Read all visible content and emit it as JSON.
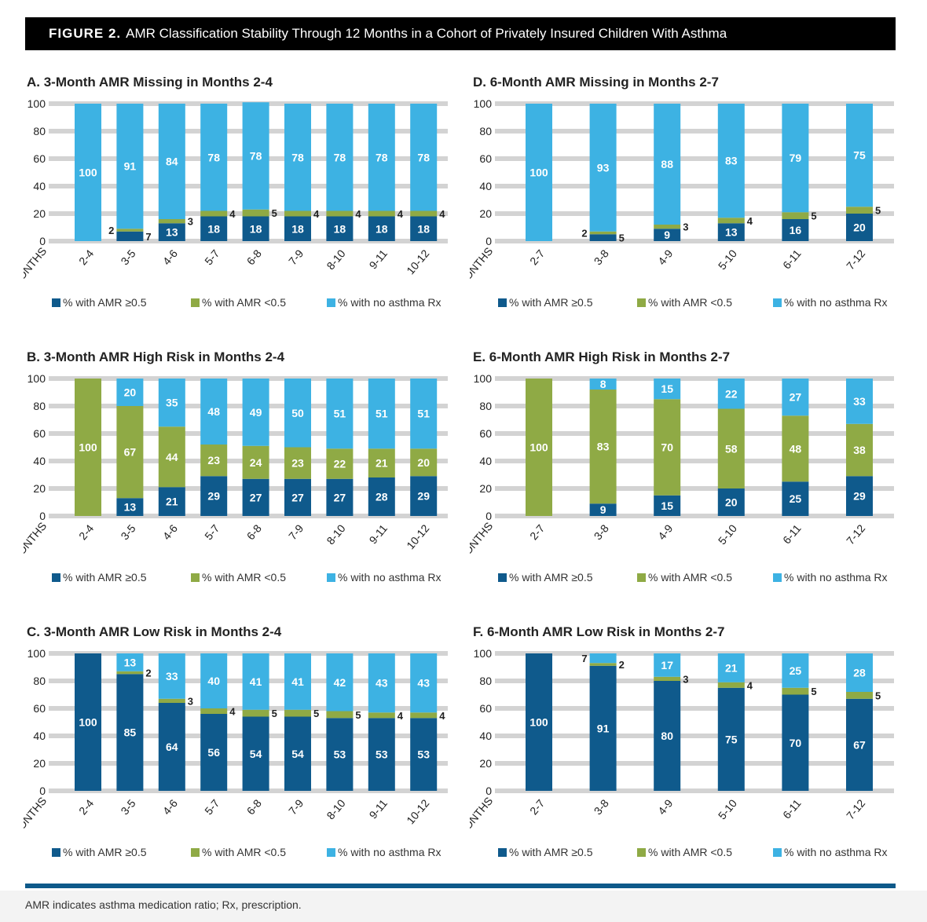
{
  "figure_label": "FIGURE 2.",
  "figure_title": "AMR Classification Stability Through 12 Months in a Cohort of Privately Insured Children With Asthma",
  "footnote": "AMR indicates asthma medication ratio; Rx, prescription.",
  "colors": {
    "amr_high": "#0f5a8c",
    "amr_low": "#8faa45",
    "no_rx": "#3db2e3",
    "grid": "#d3d3d3"
  },
  "chart_data": [
    {
      "id": "A",
      "type": "bar",
      "stacked": true,
      "title": "A. 3-Month AMR Missing in Months 2-4",
      "xlabel": "MONTHS",
      "ylim": [
        0,
        100
      ],
      "yticks": [
        0,
        20,
        40,
        60,
        80,
        100
      ],
      "grid": true,
      "legend": "bottom",
      "categories": [
        "2-4",
        "3-5",
        "4-6",
        "5-7",
        "6-8",
        "7-9",
        "8-10",
        "9-11",
        "10-12"
      ],
      "series": [
        {
          "name": "% with AMR ≥0.5",
          "values": [
            0,
            7,
            13,
            18,
            18,
            18,
            18,
            18,
            18
          ]
        },
        {
          "name": "% with AMR <0.5",
          "values": [
            0,
            2,
            3,
            4,
            5,
            4,
            4,
            4,
            4
          ]
        },
        {
          "name": "% with no asthma Rx",
          "values": [
            100,
            91,
            84,
            78,
            78,
            78,
            78,
            78,
            78
          ]
        }
      ]
    },
    {
      "id": "D",
      "type": "bar",
      "stacked": true,
      "title": "D. 6-Month AMR Missing in Months 2-7",
      "xlabel": "MONTHS",
      "ylim": [
        0,
        100
      ],
      "yticks": [
        0,
        20,
        40,
        60,
        80,
        100
      ],
      "grid": true,
      "legend": "bottom",
      "categories": [
        "2-7",
        "3-8",
        "4-9",
        "5-10",
        "6-11",
        "7-12"
      ],
      "series": [
        {
          "name": "% with AMR ≥0.5",
          "values": [
            0,
            5,
            9,
            13,
            16,
            20
          ]
        },
        {
          "name": "% with AMR <0.5",
          "values": [
            0,
            2,
            3,
            4,
            5,
            5
          ]
        },
        {
          "name": "% with no asthma Rx",
          "values": [
            100,
            93,
            88,
            83,
            79,
            75
          ]
        }
      ]
    },
    {
      "id": "B",
      "type": "bar",
      "stacked": true,
      "title": "B. 3-Month AMR High Risk in Months 2-4",
      "xlabel": "MONTHS",
      "ylim": [
        0,
        100
      ],
      "yticks": [
        0,
        20,
        40,
        60,
        80,
        100
      ],
      "grid": true,
      "legend": "bottom",
      "categories": [
        "2-4",
        "3-5",
        "4-6",
        "5-7",
        "6-8",
        "7-9",
        "8-10",
        "9-11",
        "10-12"
      ],
      "series": [
        {
          "name": "% with AMR ≥0.5",
          "values": [
            0,
            13,
            21,
            29,
            27,
            27,
            27,
            28,
            29
          ]
        },
        {
          "name": "% with AMR <0.5",
          "values": [
            100,
            67,
            44,
            23,
            24,
            23,
            22,
            21,
            20
          ]
        },
        {
          "name": "% with no asthma Rx",
          "values": [
            0,
            20,
            35,
            48,
            49,
            50,
            51,
            51,
            51
          ]
        }
      ]
    },
    {
      "id": "E",
      "type": "bar",
      "stacked": true,
      "title": "E. 6-Month AMR High Risk in Months 2-7",
      "xlabel": "MONTHS",
      "ylim": [
        0,
        100
      ],
      "yticks": [
        0,
        20,
        40,
        60,
        80,
        100
      ],
      "grid": true,
      "legend": "bottom",
      "categories": [
        "2-7",
        "3-8",
        "4-9",
        "5-10",
        "6-11",
        "7-12"
      ],
      "series": [
        {
          "name": "% with AMR ≥0.5",
          "values": [
            0,
            9,
            15,
            20,
            25,
            29
          ]
        },
        {
          "name": "% with AMR <0.5",
          "values": [
            100,
            83,
            70,
            58,
            48,
            38
          ]
        },
        {
          "name": "% with no asthma Rx",
          "values": [
            0,
            8,
            15,
            22,
            27,
            33
          ]
        }
      ]
    },
    {
      "id": "C",
      "type": "bar",
      "stacked": true,
      "title": "C. 3-Month AMR Low Risk in Months 2-4",
      "xlabel": "MONTHS",
      "ylim": [
        0,
        100
      ],
      "yticks": [
        0,
        20,
        40,
        60,
        80,
        100
      ],
      "grid": true,
      "legend": "bottom",
      "categories": [
        "2-4",
        "3-5",
        "4-6",
        "5-7",
        "6-8",
        "7-9",
        "8-10",
        "9-11",
        "10-12"
      ],
      "series": [
        {
          "name": "% with AMR ≥0.5",
          "values": [
            100,
            85,
            64,
            56,
            54,
            54,
            53,
            53,
            53
          ]
        },
        {
          "name": "% with AMR <0.5",
          "values": [
            0,
            2,
            3,
            4,
            5,
            5,
            5,
            4,
            4
          ]
        },
        {
          "name": "% with no asthma Rx",
          "values": [
            0,
            13,
            33,
            40,
            41,
            41,
            42,
            43,
            43
          ]
        }
      ]
    },
    {
      "id": "F",
      "type": "bar",
      "stacked": true,
      "title": "F. 6-Month AMR Low Risk in Months 2-7",
      "xlabel": "MONTHS",
      "ylim": [
        0,
        100
      ],
      "yticks": [
        0,
        20,
        40,
        60,
        80,
        100
      ],
      "grid": true,
      "legend": "bottom",
      "categories": [
        "2-7",
        "3-8",
        "4-9",
        "5-10",
        "6-11",
        "7-12"
      ],
      "series": [
        {
          "name": "% with AMR ≥0.5",
          "values": [
            100,
            91,
            80,
            75,
            70,
            67
          ]
        },
        {
          "name": "% with AMR <0.5",
          "values": [
            0,
            2,
            3,
            4,
            5,
            5
          ]
        },
        {
          "name": "% with no asthma Rx",
          "values": [
            0,
            7,
            17,
            21,
            25,
            28
          ]
        }
      ]
    }
  ]
}
